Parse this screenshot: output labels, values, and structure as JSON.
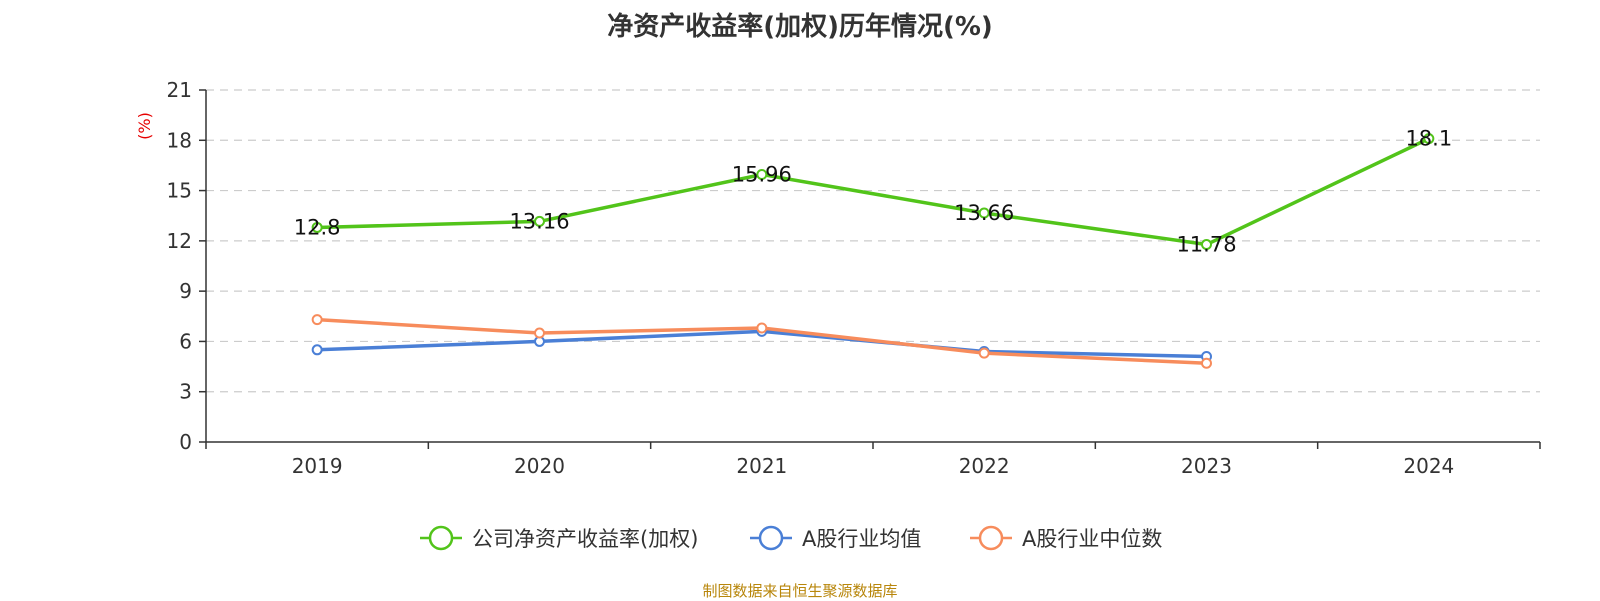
{
  "title": "净资产收益率(加权)历年情况(%)",
  "source": "制图数据来自恒生聚源数据库",
  "chart_data": {
    "type": "line",
    "title": "净资产收益率(加权)历年情况(%)",
    "ylabel": "(%)",
    "categories": [
      "2019",
      "2020",
      "2021",
      "2022",
      "2023",
      "2024"
    ],
    "ylim": [
      0,
      21
    ],
    "yticks": [
      0,
      3,
      6,
      9,
      12,
      15,
      18,
      21
    ],
    "grid": true,
    "legend_position": "bottom",
    "series": [
      {
        "name": "公司净资产收益率(加权)",
        "color": "#52c41a",
        "show_labels": true,
        "values": [
          12.8,
          13.16,
          15.96,
          13.66,
          11.78,
          18.1
        ]
      },
      {
        "name": "A股行业均值",
        "color": "#4a7fd6",
        "show_labels": false,
        "values": [
          5.5,
          6.0,
          6.6,
          5.4,
          5.1,
          null
        ]
      },
      {
        "name": "A股行业中位数",
        "color": "#f78c5c",
        "show_labels": false,
        "values": [
          7.3,
          6.5,
          6.8,
          5.3,
          4.7,
          null
        ]
      }
    ]
  }
}
